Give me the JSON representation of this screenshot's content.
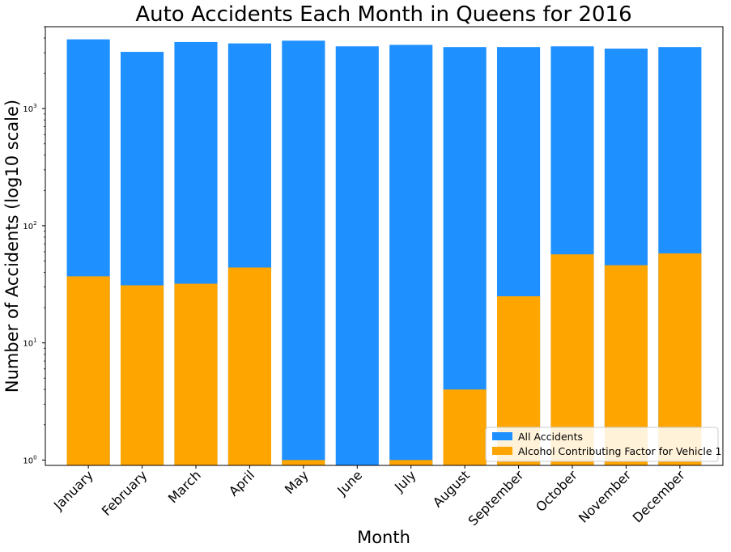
{
  "chart_data": {
    "type": "bar",
    "title": "Auto Accidents Each Month in Queens for 2016",
    "xlabel": "Month",
    "ylabel": "Number of Accidents (log10 scale)",
    "yscale": "log",
    "ylim": [
      0.9,
      5000
    ],
    "yticks": [
      {
        "value": 1,
        "base": "10",
        "exp": "0"
      },
      {
        "value": 10,
        "base": "10",
        "exp": "1"
      },
      {
        "value": 100,
        "base": "10",
        "exp": "2"
      },
      {
        "value": 1000,
        "base": "10",
        "exp": "3"
      }
    ],
    "categories": [
      "January",
      "February",
      "March",
      "April",
      "May",
      "June",
      "July",
      "August",
      "September",
      "October",
      "November",
      "December"
    ],
    "series": [
      {
        "name": "All Accidents",
        "color": "#1e90ff",
        "values": [
          3900,
          3050,
          3700,
          3600,
          3800,
          3400,
          3500,
          3350,
          3350,
          3400,
          3250,
          3350
        ]
      },
      {
        "name": "Alcohol Contributing Factor for Vehicle 1",
        "color": "#ffa500",
        "values": [
          37,
          31,
          32,
          44,
          1,
          0,
          1,
          4,
          25,
          57,
          46,
          58
        ]
      }
    ],
    "legend_position": "lower-right",
    "grid": false
  }
}
